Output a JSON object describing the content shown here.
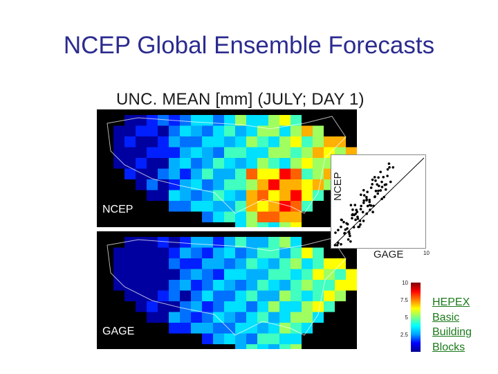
{
  "slide": {
    "title": "NCEP Global Ensemble Forecasts",
    "figure_title": "UNC. MEAN [mm] (JULY; DAY 1)"
  },
  "panels": {
    "top_label": "NCEP",
    "bottom_label": "GAGE"
  },
  "scatter": {
    "y_label": "NCEP",
    "x_label": "GAGE",
    "x_tick": "10"
  },
  "colorbar": {
    "ticks": [
      "10",
      "7.5",
      "5",
      "2.5"
    ]
  },
  "link": {
    "lines": [
      "HEPEX",
      "Basic",
      "Building",
      "Blocks"
    ]
  },
  "colors": {
    "title": "#2b2b8f",
    "link": "#1a7a1a",
    "panel_background": "#000000"
  }
}
